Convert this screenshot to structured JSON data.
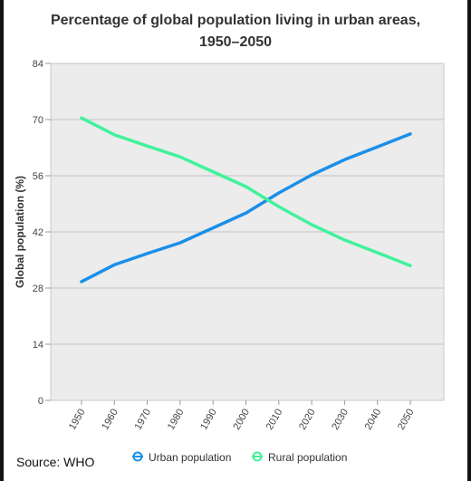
{
  "chart_data": {
    "type": "line",
    "title_line1": "Percentage of global population living in urban areas,",
    "title_line2": "1950–2050",
    "ylabel": "Global population (%)",
    "xlabel": "",
    "x": [
      "1950",
      "1960",
      "1970",
      "1980",
      "1990",
      "2000",
      "2010",
      "2020",
      "2030",
      "2040",
      "2050"
    ],
    "yticks": [
      "0",
      "14",
      "28",
      "42",
      "56",
      "70",
      "84"
    ],
    "ylim": [
      0,
      84
    ],
    "grid": true,
    "legend_position": "bottom",
    "series": [
      {
        "name": "Urban population",
        "color": "#1a8fe8",
        "values": [
          29.6,
          33.8,
          36.6,
          39.3,
          43.0,
          46.7,
          51.7,
          56.2,
          60.0,
          63.2,
          66.4
        ]
      },
      {
        "name": "Rural population",
        "color": "#41f29b",
        "values": [
          70.4,
          66.2,
          63.4,
          60.7,
          57.0,
          53.3,
          48.3,
          43.8,
          40.0,
          36.8,
          33.6
        ]
      }
    ],
    "source": "Source: WHO"
  }
}
